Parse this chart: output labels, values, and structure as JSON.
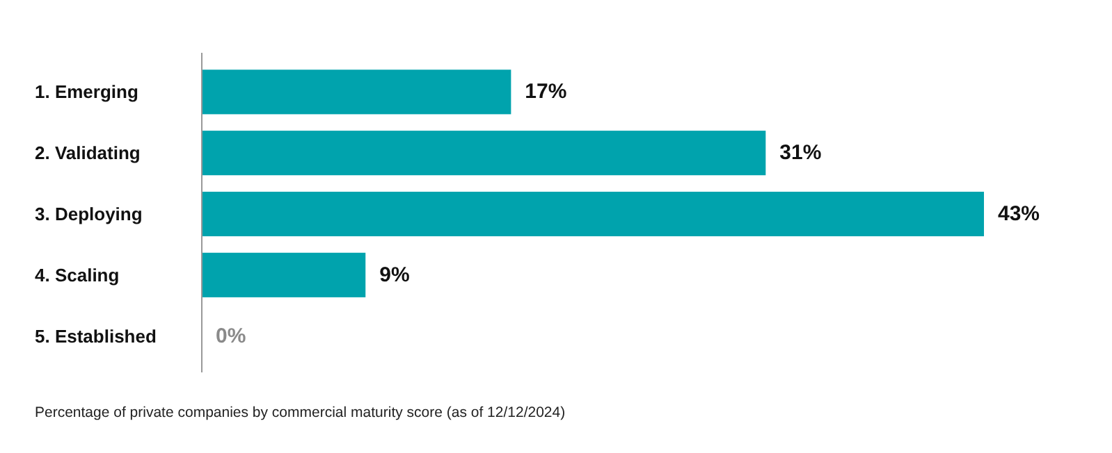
{
  "chart_data": {
    "type": "bar",
    "orientation": "horizontal",
    "categories": [
      "1. Emerging",
      "2. Validating",
      "3. Deploying",
      "4. Scaling",
      "5. Established"
    ],
    "values": [
      17,
      31,
      43,
      9,
      0
    ],
    "color": "#00a3ad",
    "value_labels": [
      "17%",
      "31%",
      "43%",
      "9%",
      "0%"
    ],
    "annotations": [
      "Percentage of private companies by commercial maturity score (as of 12/12/2024)"
    ]
  }
}
